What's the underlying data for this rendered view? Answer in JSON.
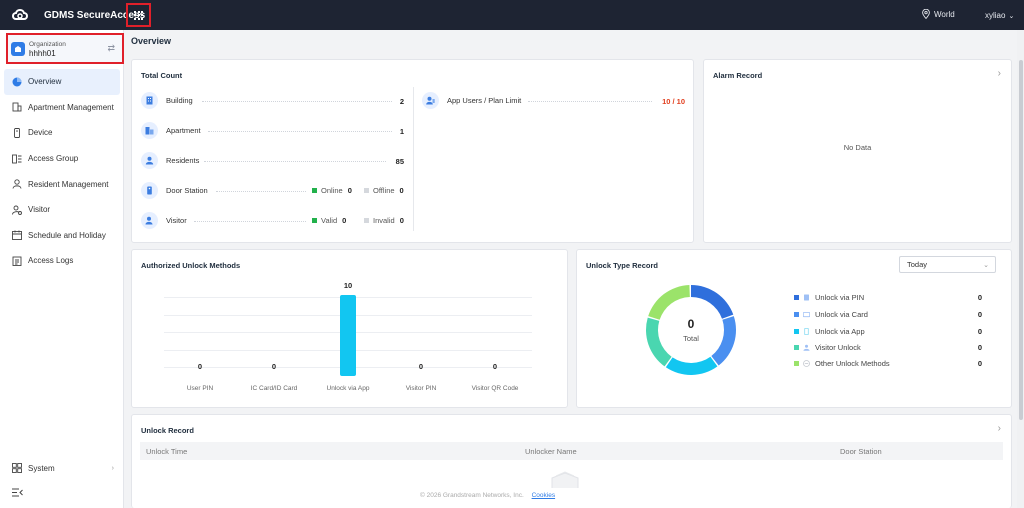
{
  "header": {
    "app_title": "GDMS SecureAccess",
    "region": "World",
    "user": "xyliao",
    "logo_icon": "cloud-logo-icon",
    "apps_icon": "grid-apps-icon"
  },
  "sidebar": {
    "org_label": "Organization",
    "org_name": "hhhh01",
    "items": [
      {
        "label": "Overview",
        "icon": "pie-chart-icon"
      },
      {
        "label": "Apartment Management",
        "icon": "building-icon"
      },
      {
        "label": "Device",
        "icon": "device-icon"
      },
      {
        "label": "Access Group",
        "icon": "access-group-icon"
      },
      {
        "label": "Resident Management",
        "icon": "person-icon"
      },
      {
        "label": "Visitor",
        "icon": "visitor-icon"
      },
      {
        "label": "Schedule and Holiday",
        "icon": "calendar-icon"
      },
      {
        "label": "Access Logs",
        "icon": "log-icon"
      }
    ],
    "system_label": "System"
  },
  "page_title": "Overview",
  "total_count": {
    "title": "Total Count",
    "building": {
      "label": "Building",
      "value": "2"
    },
    "apartment": {
      "label": "Apartment",
      "value": "1"
    },
    "residents": {
      "label": "Residents",
      "value": "85"
    },
    "door_station": {
      "label": "Door Station",
      "online_label": "Online",
      "online_value": "0",
      "offline_label": "Offline",
      "offline_value": "0"
    },
    "visitor": {
      "label": "Visitor",
      "valid_label": "Valid",
      "valid_value": "0",
      "invalid_label": "Invalid",
      "invalid_value": "0"
    },
    "app_users": {
      "label": "App Users / Plan Limit",
      "value": "10 / 10"
    }
  },
  "alarm_record": {
    "title": "Alarm Record",
    "empty": "No Data"
  },
  "chart_data": {
    "type": "bar",
    "title": "Authorized Unlock Methods",
    "categories": [
      "User PIN",
      "IC Card/ID Card",
      "Unlock via App",
      "Visitor PIN",
      "Visitor QR Code"
    ],
    "values": [
      0,
      0,
      10,
      0,
      0
    ],
    "value_labels": [
      "0",
      "0",
      "10",
      "0",
      "0"
    ],
    "ylim": [
      0,
      10
    ],
    "grid": true,
    "colors": {
      "bar": "#12c6f1"
    }
  },
  "unlock_type": {
    "title": "Unlock Type Record",
    "period": "Today",
    "total_value": "0",
    "total_label": "Total",
    "legend": [
      {
        "label": "Unlock via PIN",
        "value": "0",
        "color": "#2f6fdc"
      },
      {
        "label": "Unlock via Card",
        "value": "0",
        "color": "#4a8ff0"
      },
      {
        "label": "Unlock via App",
        "value": "0",
        "color": "#12c6f1"
      },
      {
        "label": "Visitor Unlock",
        "value": "0",
        "color": "#4ad6b0"
      },
      {
        "label": "Other Unlock Methods",
        "value": "0",
        "color": "#9be36a"
      }
    ]
  },
  "unlock_record": {
    "title": "Unlock Record",
    "columns": [
      "Unlock Time",
      "Unlocker Name",
      "Door Station"
    ]
  },
  "footer": {
    "copyright": "© 2026 Grandstream Networks, Inc.",
    "cookies": "Cookies"
  }
}
